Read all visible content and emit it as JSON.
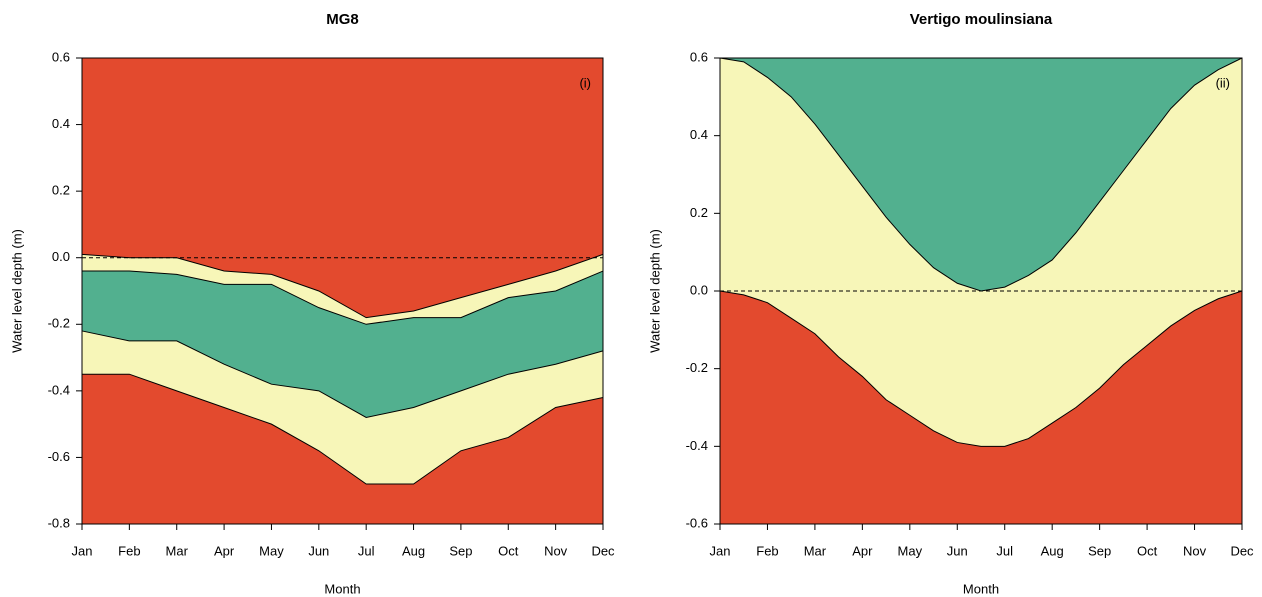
{
  "chart_data": [
    {
      "type": "band",
      "title": "MG8",
      "annotation": "(i)",
      "xlabel": "Month",
      "ylabel": "Water level depth (m)",
      "categories": [
        "Jan",
        "Feb",
        "Mar",
        "Apr",
        "May",
        "Jun",
        "Jul",
        "Aug",
        "Sep",
        "Oct",
        "Nov",
        "Dec"
      ],
      "series": [
        {
          "color": "#000000",
          "values": [
            0.01,
            0.0,
            0.0,
            -0.04,
            -0.05,
            -0.1,
            -0.18,
            -0.16,
            -0.12,
            -0.08,
            -0.04,
            0.01
          ]
        },
        {
          "color": "#000000",
          "values": [
            -0.04,
            -0.04,
            -0.05,
            -0.08,
            -0.08,
            -0.15,
            -0.2,
            -0.18,
            -0.18,
            -0.12,
            -0.1,
            -0.04
          ]
        },
        {
          "color": "#000000",
          "values": [
            -0.22,
            -0.25,
            -0.25,
            -0.32,
            -0.38,
            -0.4,
            -0.48,
            -0.45,
            -0.4,
            -0.35,
            -0.32,
            -0.28
          ]
        },
        {
          "color": "#000000",
          "values": [
            -0.35,
            -0.35,
            -0.4,
            -0.45,
            -0.5,
            -0.58,
            -0.68,
            -0.68,
            -0.58,
            -0.54,
            -0.45,
            -0.42
          ]
        }
      ],
      "fill_colors": [
        "#e34a2e",
        "#f7f6b8",
        "#52b08f",
        "#f7f6b8",
        "#e34a2e"
      ],
      "reference_line": 0,
      "ylim": [
        -0.8,
        0.6
      ],
      "yticks": [
        -0.8,
        -0.6,
        -0.4,
        -0.2,
        {
          "value": 0,
          "label": "0.0"
        },
        0.2,
        0.4,
        0.6
      ]
    },
    {
      "type": "band",
      "title": "Vertigo moulinsiana",
      "annotation": "(ii)",
      "xlabel": "Month",
      "ylabel": "Water level depth (m)",
      "x": [
        0,
        0.5,
        1,
        1.5,
        2,
        2.5,
        3,
        3.5,
        4,
        4.5,
        5,
        5.5,
        6,
        6.5,
        7,
        7.5,
        8,
        8.5,
        9,
        9.5,
        10,
        10.5,
        11
      ],
      "series": [
        {
          "color": "#000000",
          "values": [
            0.6,
            0.59,
            0.55,
            0.5,
            0.43,
            0.35,
            0.27,
            0.19,
            0.12,
            0.06,
            0.02,
            0.0,
            0.01,
            0.04,
            0.08,
            0.15,
            0.23,
            0.31,
            0.39,
            0.47,
            0.53,
            0.57,
            0.6
          ]
        },
        {
          "color": "#000000",
          "values": [
            0,
            -0.01,
            -0.03,
            -0.07,
            -0.11,
            -0.17,
            -0.22,
            -0.28,
            -0.32,
            -0.36,
            -0.39,
            -0.4,
            -0.4,
            -0.38,
            -0.34,
            -0.3,
            -0.25,
            -0.19,
            -0.14,
            -0.09,
            -0.05,
            -0.02,
            0
          ]
        }
      ],
      "fill_colors": [
        "#52b08f",
        "#f7f6b8",
        "#e34a2e"
      ],
      "reference_line": 0,
      "xlim": [
        0,
        11
      ],
      "xticks": [
        {
          "value": 0,
          "label": "Jan"
        },
        {
          "value": 1,
          "label": "Feb"
        },
        {
          "value": 2,
          "label": "Mar"
        },
        {
          "value": 3,
          "label": "Apr"
        },
        {
          "value": 4,
          "label": "May"
        },
        {
          "value": 5,
          "label": "Jun"
        },
        {
          "value": 6,
          "label": "Jul"
        },
        {
          "value": 7,
          "label": "Aug"
        },
        {
          "value": 8,
          "label": "Sep"
        },
        {
          "value": 9,
          "label": "Oct"
        },
        {
          "value": 10,
          "label": "Nov"
        },
        {
          "value": 11,
          "label": "Dec"
        }
      ],
      "ylim": [
        -0.6,
        0.6
      ],
      "yticks": [
        -0.6,
        -0.4,
        -0.2,
        {
          "value": 0,
          "label": "0.0"
        },
        0.2,
        0.4,
        0.6
      ]
    }
  ]
}
